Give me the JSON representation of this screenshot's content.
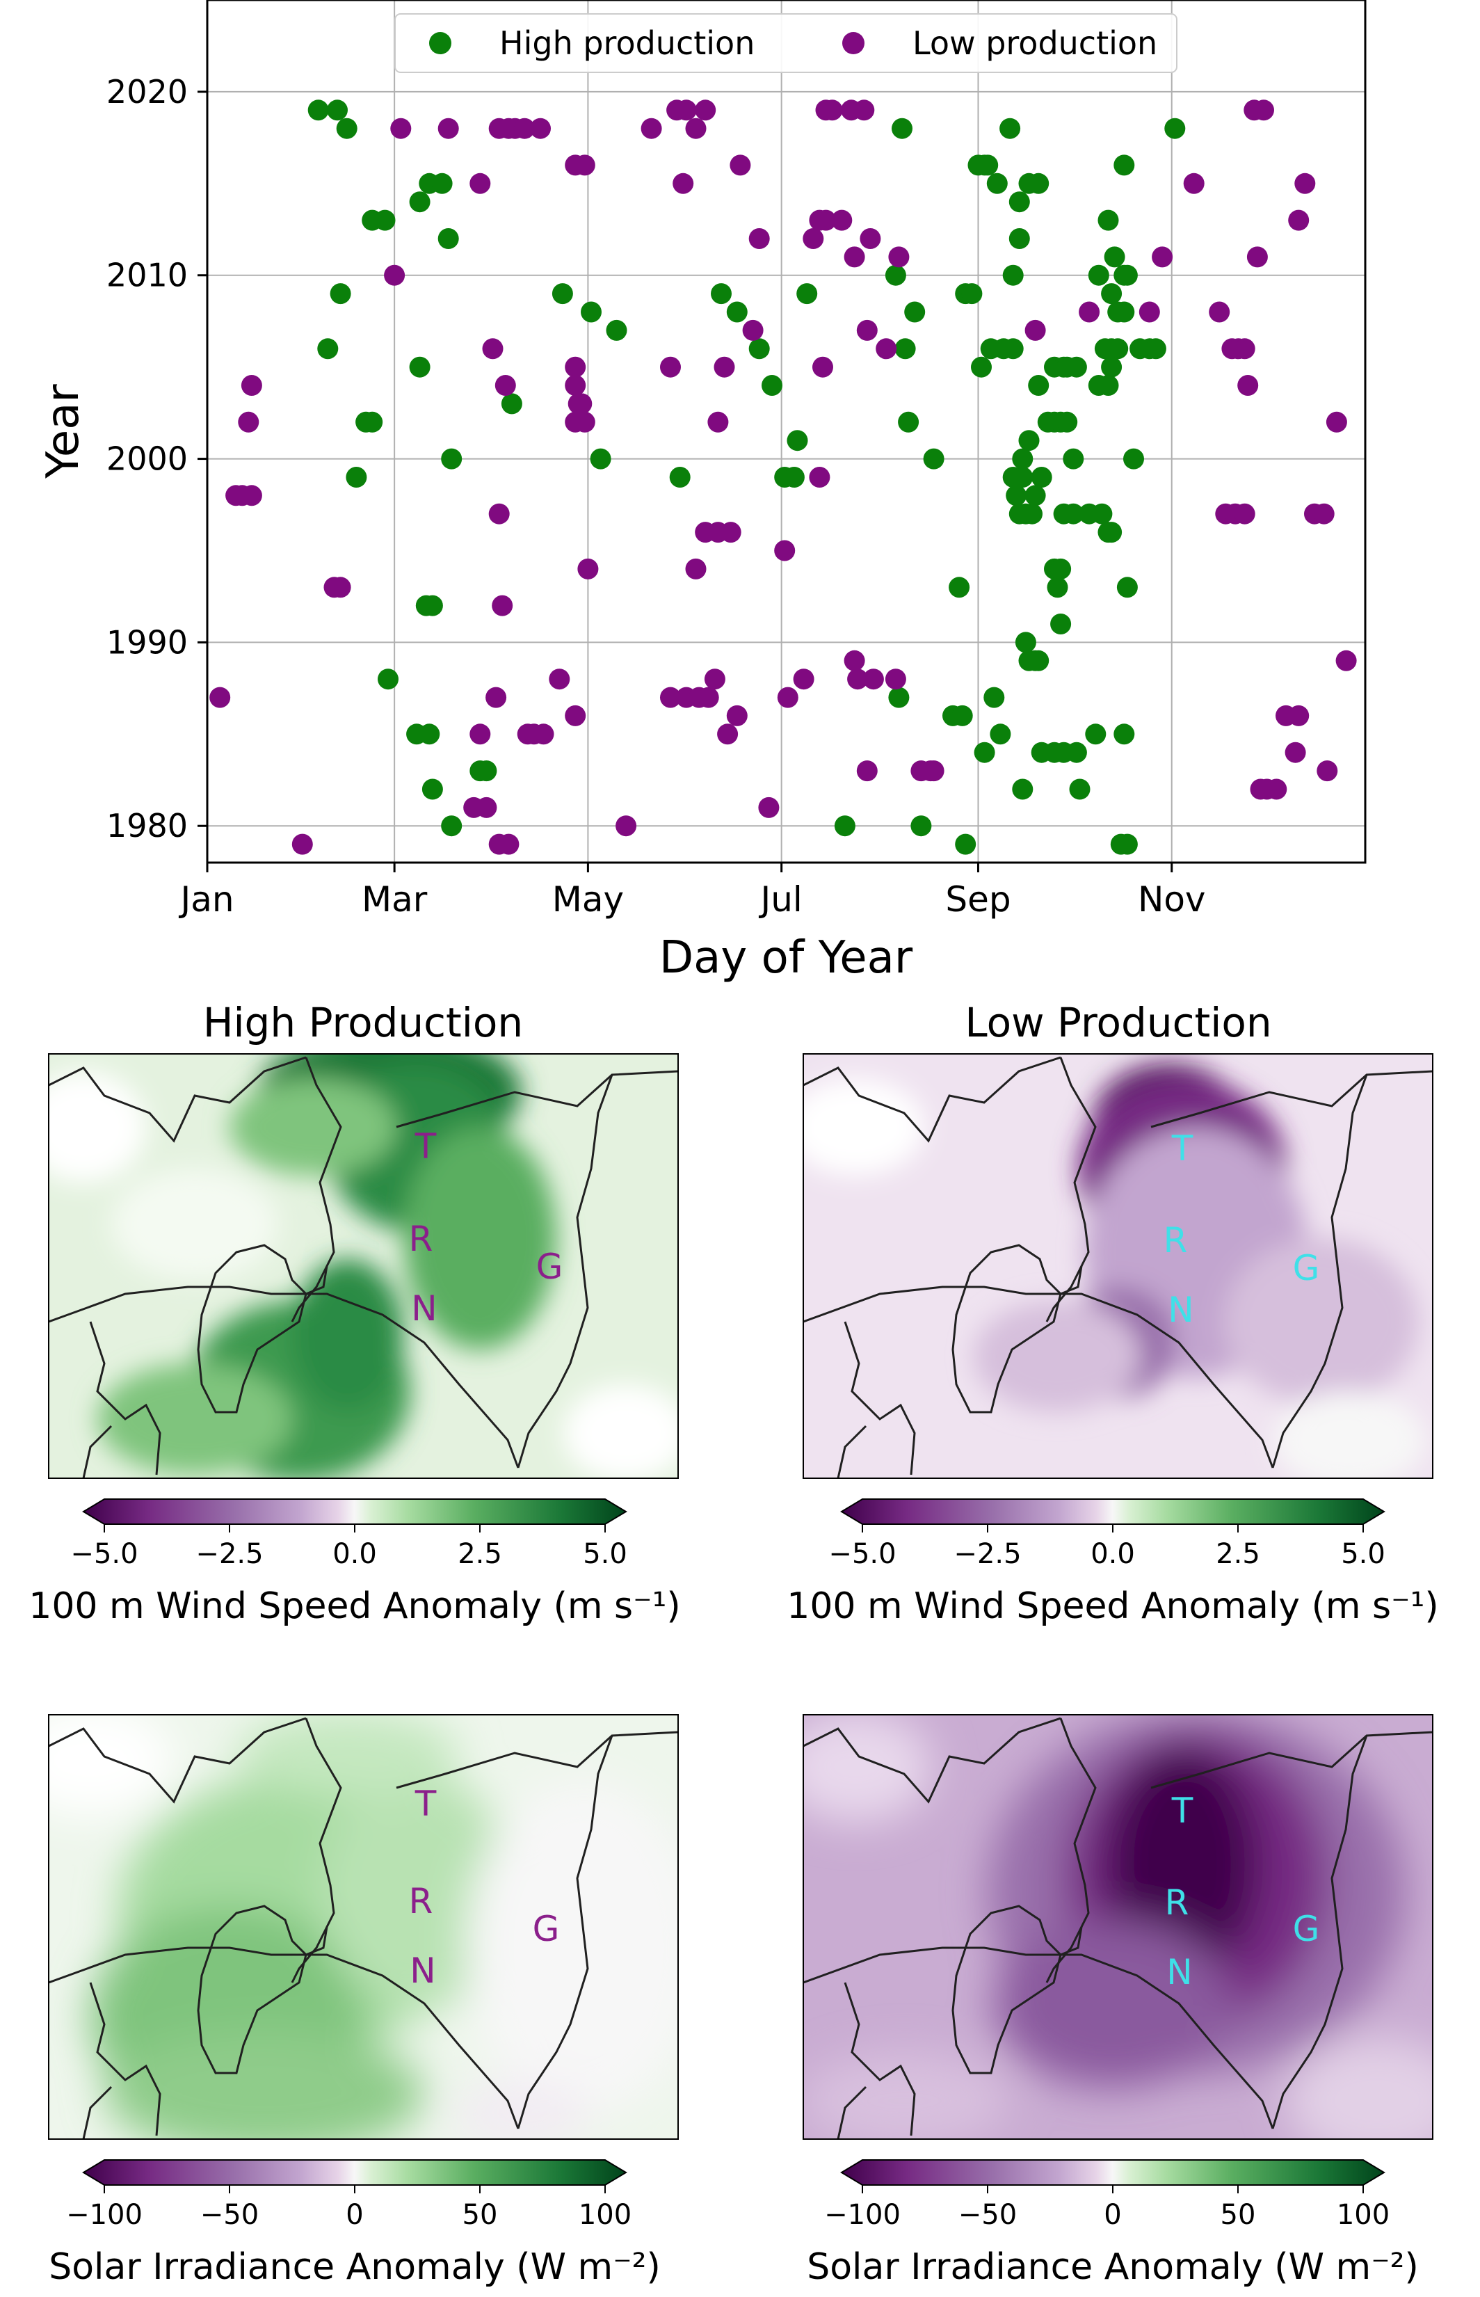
{
  "colors": {
    "high": "#0a800a",
    "low": "#800a80",
    "grid": "#b0b0b0",
    "cyan": "#3fe0e8",
    "purple_label": "#8b1f8b"
  },
  "chart_data": [
    {
      "type": "scatter",
      "xlabel": "Day of Year",
      "ylabel": "Year",
      "xlim": [
        1,
        366
      ],
      "ylim": [
        1978,
        2025
      ],
      "x_ticks": [
        {
          "day": 1,
          "label": "Jan"
        },
        {
          "day": 60,
          "label": "Mar"
        },
        {
          "day": 121,
          "label": "May"
        },
        {
          "day": 182,
          "label": "Jul"
        },
        {
          "day": 244,
          "label": "Sep"
        },
        {
          "day": 305,
          "label": "Nov"
        }
      ],
      "y_ticks": [
        1980,
        1990,
        2000,
        2010,
        2020
      ],
      "grid": true,
      "legend_position": "top-center",
      "series": [
        {
          "name": "High production",
          "color": "#0a800a",
          "points": [
            [
              36,
              2019
            ],
            [
              42,
              2019
            ],
            [
              45,
              2018
            ],
            [
              53,
              2013
            ],
            [
              57,
              2013
            ],
            [
              43,
              2009
            ],
            [
              39,
              2006
            ],
            [
              48,
              1999
            ],
            [
              51,
              2002
            ],
            [
              53,
              2002
            ],
            [
              68,
              2014
            ],
            [
              71,
              2015
            ],
            [
              75,
              2015
            ],
            [
              77,
              2012
            ],
            [
              68,
              2005
            ],
            [
              78,
              2000
            ],
            [
              72,
              1992
            ],
            [
              70,
              1992
            ],
            [
              58,
              1988
            ],
            [
              67,
              1985
            ],
            [
              71,
              1985
            ],
            [
              72,
              1982
            ],
            [
              78,
              1980
            ],
            [
              89,
              1983
            ],
            [
              87,
              1983
            ],
            [
              97,
              2003
            ],
            [
              113,
              2009
            ],
            [
              122,
              2008
            ],
            [
              130,
              2007
            ],
            [
              125,
              2000
            ],
            [
              150,
              1999
            ],
            [
              163,
              2009
            ],
            [
              168,
              2008
            ],
            [
              175,
              2006
            ],
            [
              179,
              2004
            ],
            [
              183,
              1999
            ],
            [
              186,
              1999
            ],
            [
              187,
              2001
            ],
            [
              190,
              2009
            ],
            [
              202,
              1980
            ],
            [
              220,
              2018
            ],
            [
              224,
              2008
            ],
            [
              218,
              2010
            ],
            [
              221,
              2006
            ],
            [
              222,
              2002
            ],
            [
              230,
              2000
            ],
            [
              219,
              1987
            ],
            [
              226,
              1980
            ],
            [
              238,
              1993
            ],
            [
              236,
              1986
            ],
            [
              239,
              1986
            ],
            [
              240,
              1979
            ],
            [
              240,
              2009
            ],
            [
              242,
              2009
            ],
            [
              244,
              2016
            ],
            [
              246,
              2016
            ],
            [
              247,
              2016
            ],
            [
              245,
              2005
            ],
            [
              248,
              2006
            ],
            [
              250,
              2015
            ],
            [
              252,
              2006
            ],
            [
              255,
              2006
            ],
            [
              254,
              2018
            ],
            [
              257,
              2014
            ],
            [
              255,
              2010
            ],
            [
              257,
              2012
            ],
            [
              260,
              2015
            ],
            [
              263,
              2015
            ],
            [
              249,
              1987
            ],
            [
              251,
              1985
            ],
            [
              246,
              1984
            ],
            [
              255,
              1999
            ],
            [
              256,
              1998
            ],
            [
              258,
              1999
            ],
            [
              258,
              2000
            ],
            [
              260,
              2001
            ],
            [
              259,
              1997
            ],
            [
              261,
              1997
            ],
            [
              262,
              1998
            ],
            [
              264,
              1999
            ],
            [
              257,
              1997
            ],
            [
              259,
              1990
            ],
            [
              260,
              1989
            ],
            [
              262,
              1989
            ],
            [
              263,
              1989
            ],
            [
              258,
              1982
            ],
            [
              263,
              2004
            ],
            [
              266,
              2002
            ],
            [
              268,
              2002
            ],
            [
              270,
              2002
            ],
            [
              268,
              2005
            ],
            [
              271,
              2005
            ],
            [
              272,
              2005
            ],
            [
              275,
              2005
            ],
            [
              272,
              2002
            ],
            [
              274,
              2000
            ],
            [
              271,
              1997
            ],
            [
              268,
              1994
            ],
            [
              270,
              1994
            ],
            [
              269,
              1993
            ],
            [
              270,
              1991
            ],
            [
              264,
              1984
            ],
            [
              268,
              1984
            ],
            [
              271,
              1984
            ],
            [
              275,
              1984
            ],
            [
              276,
              1982
            ],
            [
              274,
              1997
            ],
            [
              279,
              1997
            ],
            [
              283,
              1997
            ],
            [
              282,
              2004
            ],
            [
              284,
              2006
            ],
            [
              286,
              2006
            ],
            [
              288,
              2006
            ],
            [
              286,
              2005
            ],
            [
              285,
              2004
            ],
            [
              288,
              2008
            ],
            [
              290,
              2008
            ],
            [
              282,
              2010
            ],
            [
              286,
              2009
            ],
            [
              287,
              2011
            ],
            [
              291,
              2010
            ],
            [
              290,
              2010
            ],
            [
              285,
              2013
            ],
            [
              290,
              2016
            ],
            [
              291,
              1993
            ],
            [
              286,
              1996
            ],
            [
              285,
              1996
            ],
            [
              281,
              1985
            ],
            [
              290,
              1985
            ],
            [
              289,
              1979
            ],
            [
              291,
              1979
            ],
            [
              293,
              2000
            ],
            [
              295,
              2006
            ],
            [
              298,
              2006
            ],
            [
              300,
              2006
            ],
            [
              306,
              2018
            ]
          ]
        },
        {
          "name": "Low production",
          "color": "#800a80",
          "points": [
            [
              5,
              1987
            ],
            [
              10,
              1998
            ],
            [
              12,
              1998
            ],
            [
              15,
              1998
            ],
            [
              14,
              2002
            ],
            [
              15,
              2004
            ],
            [
              31,
              1979
            ],
            [
              41,
              1993
            ],
            [
              43,
              1993
            ],
            [
              60,
              2010
            ],
            [
              62,
              2018
            ],
            [
              77,
              2018
            ],
            [
              87,
              2015
            ],
            [
              91,
              2006
            ],
            [
              93,
              2018
            ],
            [
              96,
              2018
            ],
            [
              98,
              2018
            ],
            [
              101,
              2018
            ],
            [
              106,
              2018
            ],
            [
              93,
              1997
            ],
            [
              94,
              1992
            ],
            [
              92,
              1987
            ],
            [
              95,
              2004
            ],
            [
              102,
              1985
            ],
            [
              104,
              1985
            ],
            [
              107,
              1985
            ],
            [
              93,
              1979
            ],
            [
              96,
              1979
            ],
            [
              87,
              1985
            ],
            [
              85,
              1981
            ],
            [
              89,
              1981
            ],
            [
              112,
              1988
            ],
            [
              117,
              2016
            ],
            [
              120,
              2016
            ],
            [
              117,
              2005
            ],
            [
              117,
              2004
            ],
            [
              118,
              2003
            ],
            [
              119,
              2003
            ],
            [
              117,
              2002
            ],
            [
              120,
              2002
            ],
            [
              121,
              1994
            ],
            [
              117,
              1986
            ],
            [
              133,
              1980
            ],
            [
              141,
              2018
            ],
            [
              149,
              2019
            ],
            [
              152,
              2019
            ],
            [
              158,
              2019
            ],
            [
              155,
              2018
            ],
            [
              151,
              2015
            ],
            [
              169,
              2016
            ],
            [
              147,
              2005
            ],
            [
              164,
              2005
            ],
            [
              162,
              2002
            ],
            [
              158,
              1996
            ],
            [
              162,
              1996
            ],
            [
              166,
              1996
            ],
            [
              155,
              1994
            ],
            [
              147,
              1987
            ],
            [
              152,
              1987
            ],
            [
              156,
              1987
            ],
            [
              159,
              1987
            ],
            [
              161,
              1988
            ],
            [
              165,
              1985
            ],
            [
              168,
              1986
            ],
            [
              173,
              2007
            ],
            [
              175,
              2012
            ],
            [
              183,
              1995
            ],
            [
              178,
              1981
            ],
            [
              184,
              1987
            ],
            [
              192,
              2012
            ],
            [
              194,
              2013
            ],
            [
              196,
              2013
            ],
            [
              189,
              1988
            ],
            [
              194,
              1999
            ],
            [
              195,
              2005
            ],
            [
              201,
              2013
            ],
            [
              205,
              2011
            ],
            [
              210,
              2012
            ],
            [
              209,
              2007
            ],
            [
              215,
              2006
            ],
            [
              205,
              1989
            ],
            [
              206,
              1988
            ],
            [
              209,
              1983
            ],
            [
              211,
              1988
            ],
            [
              218,
              1988
            ],
            [
              219,
              2011
            ],
            [
              226,
              1983
            ],
            [
              229,
              1983
            ],
            [
              230,
              1983
            ],
            [
              196,
              2019
            ],
            [
              198,
              2019
            ],
            [
              204,
              2019
            ],
            [
              208,
              2019
            ],
            [
              262,
              2007
            ],
            [
              279,
              2008
            ],
            [
              298,
              2008
            ],
            [
              302,
              2011
            ],
            [
              312,
              2015
            ],
            [
              320,
              2008
            ],
            [
              322,
              1997
            ],
            [
              325,
              1997
            ],
            [
              328,
              1997
            ],
            [
              324,
              2006
            ],
            [
              326,
              2006
            ],
            [
              328,
              2006
            ],
            [
              329,
              2004
            ],
            [
              332,
              2011
            ],
            [
              331,
              2019
            ],
            [
              334,
              2019
            ],
            [
              333,
              1982
            ],
            [
              335,
              1982
            ],
            [
              338,
              1982
            ],
            [
              341,
              1986
            ],
            [
              345,
              1986
            ],
            [
              344,
              1984
            ],
            [
              345,
              2013
            ],
            [
              347,
              2015
            ],
            [
              350,
              1997
            ],
            [
              353,
              1997
            ],
            [
              354,
              1983
            ],
            [
              357,
              2002
            ],
            [
              360,
              1989
            ]
          ]
        }
      ]
    },
    {
      "type": "heatmap",
      "title": "High Production",
      "colorbar": {
        "ticks": [
          "−5.0",
          "−2.5",
          "0.0",
          "2.5",
          "5.0"
        ],
        "label": "100 m Wind Speed Anomaly (m s⁻¹)"
      },
      "labels": [
        "T",
        "R",
        "N",
        "G"
      ]
    },
    {
      "type": "heatmap",
      "title": "Low Production",
      "colorbar": {
        "ticks": [
          "−5.0",
          "−2.5",
          "0.0",
          "2.5",
          "5.0"
        ],
        "label": "100 m Wind Speed Anomaly (m s⁻¹)"
      },
      "labels": [
        "T",
        "R",
        "N",
        "G"
      ]
    },
    {
      "type": "heatmap",
      "title": "",
      "colorbar": {
        "ticks": [
          "−100",
          "−50",
          "0",
          "50",
          "100"
        ],
        "label": "Solar Irradiance Anomaly (W m⁻²)"
      },
      "labels": [
        "T",
        "R",
        "N",
        "G"
      ]
    },
    {
      "type": "heatmap",
      "title": "",
      "colorbar": {
        "ticks": [
          "−100",
          "−50",
          "0",
          "50",
          "100"
        ],
        "label": "Solar Irradiance Anomaly (W m⁻²)"
      },
      "labels": [
        "T",
        "R",
        "N",
        "G"
      ]
    }
  ]
}
